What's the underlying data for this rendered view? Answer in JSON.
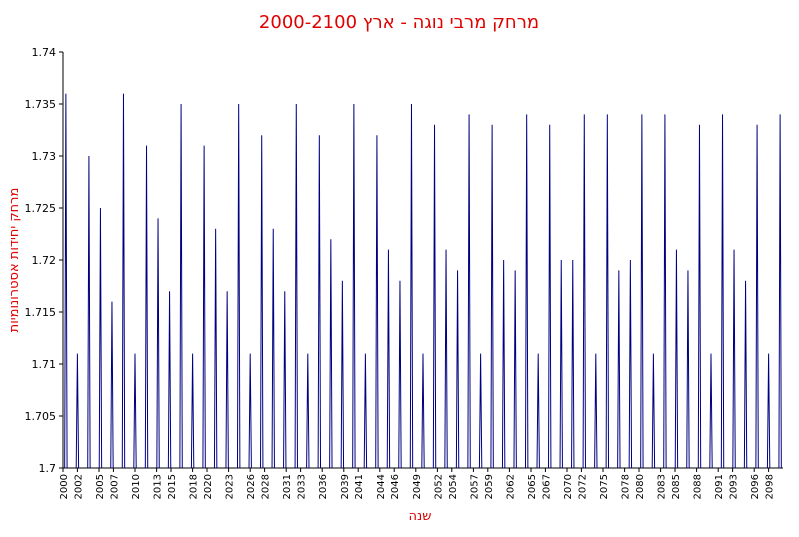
{
  "chart_data": {
    "type": "spike",
    "title": "מרחק מרבי נוגה - ארץ  2000-2100",
    "x_label": "שנה",
    "y_label": "מרחק יחידות אסטרונומיות",
    "color": "#000080",
    "grid": false,
    "x": [
      2000.4,
      2002,
      2003.6,
      2005.2,
      2006.8,
      2008.4,
      2010,
      2011.6,
      2013.2,
      2014.8,
      2016.4,
      2018,
      2019.6,
      2021.2,
      2022.8,
      2024.4,
      2026,
      2027.6,
      2029.2,
      2030.8,
      2032.4,
      2034,
      2035.6,
      2037.2,
      2038.8,
      2040.4,
      2042,
      2043.6,
      2045.2,
      2046.8,
      2048.4,
      2050,
      2051.6,
      2053.2,
      2054.8,
      2056.4,
      2058,
      2059.6,
      2061.2,
      2062.8,
      2064.4,
      2066,
      2067.6,
      2069.2,
      2070.8,
      2072.4,
      2074,
      2075.6,
      2077.2,
      2078.8,
      2080.4,
      2082,
      2083.6,
      2085.2,
      2086.8,
      2088.4,
      2090,
      2091.6,
      2093.2,
      2094.8,
      2096.4,
      2098,
      2099.6
    ],
    "values": [
      1.736,
      1.711,
      1.73,
      1.725,
      1.716,
      1.736,
      1.711,
      1.731,
      1.724,
      1.717,
      1.735,
      1.711,
      1.731,
      1.723,
      1.717,
      1.735,
      1.711,
      1.732,
      1.723,
      1.717,
      1.735,
      1.711,
      1.732,
      1.722,
      1.718,
      1.735,
      1.711,
      1.732,
      1.721,
      1.718,
      1.735,
      1.711,
      1.733,
      1.721,
      1.719,
      1.734,
      1.711,
      1.733,
      1.72,
      1.719,
      1.734,
      1.711,
      1.733,
      1.72,
      1.72,
      1.734,
      1.711,
      1.734,
      1.719,
      1.72,
      1.734,
      1.711,
      1.734,
      1.721,
      1.719,
      1.733,
      1.711,
      1.734,
      1.721,
      1.718,
      1.733,
      1.711,
      1.734
    ],
    "xlim": [
      2000,
      2100
    ],
    "xticks": [
      2000,
      2002,
      2005,
      2007,
      2010,
      2013,
      2015,
      2018,
      2020,
      2023,
      2026,
      2028,
      2031,
      2033,
      2036,
      2039,
      2041,
      2044,
      2046,
      2049,
      2052,
      2054,
      2057,
      2059,
      2062,
      2065,
      2067,
      2070,
      2072,
      2075,
      2078,
      2080,
      2083,
      2085,
      2088,
      2091,
      2093,
      2096,
      2098
    ],
    "ylim": [
      1.7,
      1.74
    ],
    "yticks": [
      1.7,
      1.705,
      1.71,
      1.715,
      1.72,
      1.725,
      1.73,
      1.735,
      1.74
    ]
  }
}
